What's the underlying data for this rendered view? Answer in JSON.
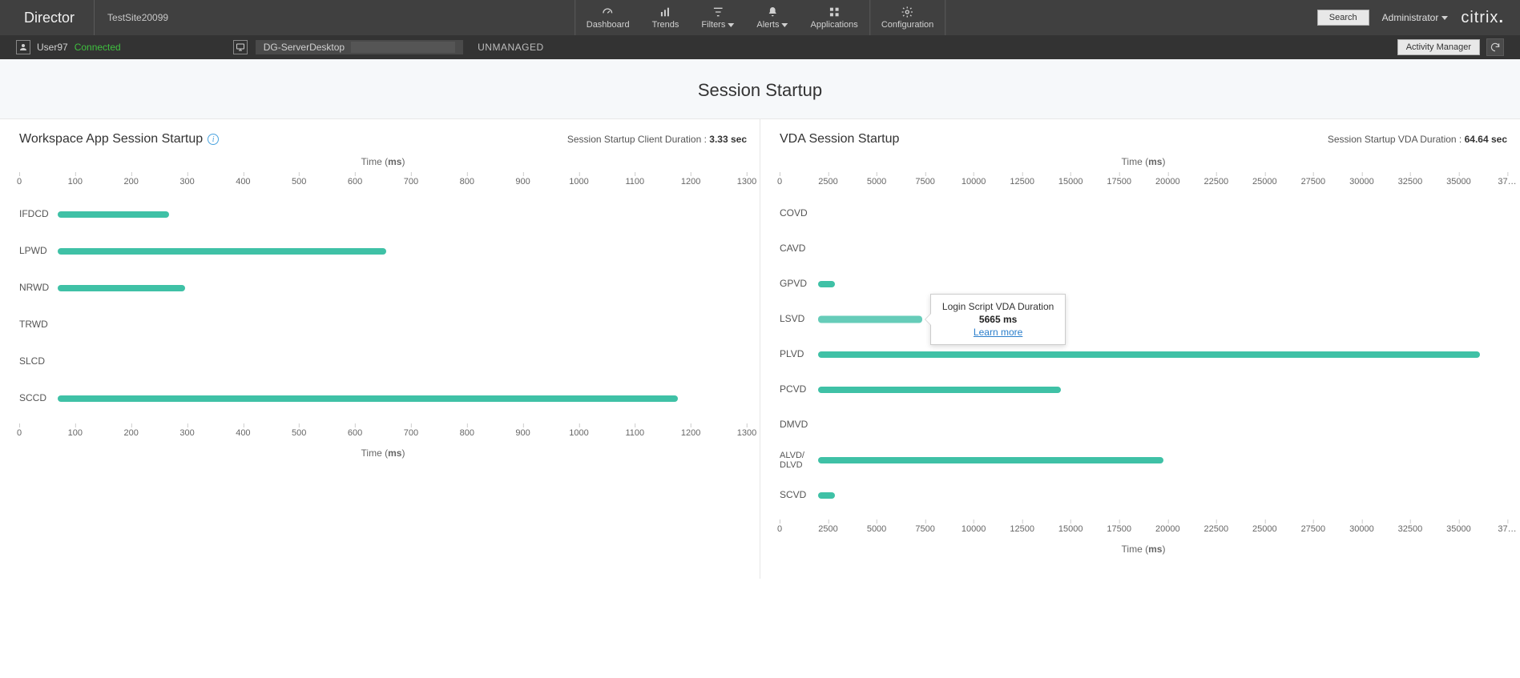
{
  "topbar": {
    "brand": "Director",
    "site_name": "TestSite20099",
    "nav": {
      "dashboard": "Dashboard",
      "trends": "Trends",
      "filters": "Filters",
      "alerts": "Alerts",
      "applications": "Applications",
      "configuration": "Configuration"
    },
    "search_label": "Search",
    "admin_label": "Administrator",
    "logo_text": "citrix"
  },
  "subbar": {
    "user_name": "User97",
    "user_status": "Connected",
    "machine_name": "DG-ServerDesktop",
    "machine_status": "UNMANAGED",
    "activity_btn": "Activity Manager"
  },
  "page_title": "Session Startup",
  "colors": {
    "bar": "#3fc1a6",
    "bar_highlight": "#66ccb9",
    "axis_text": "#666666",
    "panel_border": "#e6e6e6"
  },
  "left_panel": {
    "title": "Workspace App Session Startup",
    "stat_label": "Session Startup Client Duration :",
    "stat_value": "3.33 sec",
    "chart": {
      "type": "bar",
      "axis_title_prefix": "Time (",
      "axis_unit": "ms",
      "axis_title_suffix": ")",
      "xmax": 1300,
      "tick_step": 100,
      "ticks": [
        0,
        100,
        200,
        300,
        400,
        500,
        600,
        700,
        800,
        900,
        1000,
        1100,
        1200,
        1300
      ],
      "rows": [
        {
          "label": "IFDCD",
          "value": 210
        },
        {
          "label": "LPWD",
          "value": 620
        },
        {
          "label": "NRWD",
          "value": 240
        },
        {
          "label": "TRWD",
          "value": 0
        },
        {
          "label": "SLCD",
          "value": 0
        },
        {
          "label": "SCCD",
          "value": 1170
        }
      ]
    }
  },
  "right_panel": {
    "title": "VDA Session Startup",
    "stat_label": "Session Startup VDA Duration :",
    "stat_value": "64.64 sec",
    "chart": {
      "type": "bar",
      "axis_title_prefix": "Time (",
      "axis_unit": "ms",
      "axis_title_suffix": ")",
      "xmax": 37500,
      "tick_step": 2500,
      "ticks": [
        0,
        2500,
        5000,
        7500,
        10000,
        12500,
        15000,
        17500,
        20000,
        22500,
        25000,
        27500,
        30000,
        32500,
        35000
      ],
      "ticks_overflow_label": "37…",
      "rows": [
        {
          "label": "COVD",
          "value": 0
        },
        {
          "label": "CAVD",
          "value": 0
        },
        {
          "label": "GPVD",
          "value": 900
        },
        {
          "label": "LSVD",
          "value": 5665,
          "highlight": true
        },
        {
          "label": "PLVD",
          "value": 36000
        },
        {
          "label": "PCVD",
          "value": 13200
        },
        {
          "label": "DMVD",
          "value": 0
        },
        {
          "label": "ALVD/ DLVD",
          "value": 18800,
          "two_line": true
        },
        {
          "label": "SCVD",
          "value": 900
        }
      ]
    },
    "tooltip": {
      "title": "Login Script VDA Duration",
      "value": "5665 ms",
      "link": "Learn more"
    }
  }
}
